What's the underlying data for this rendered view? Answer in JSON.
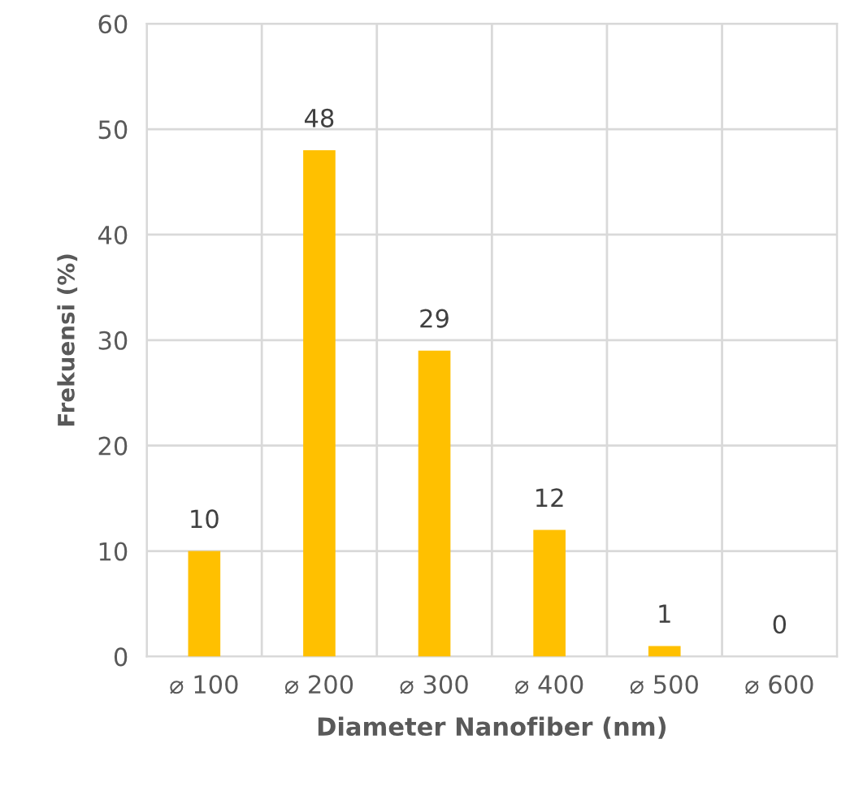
{
  "chart_data": {
    "type": "bar",
    "xlabel": "Diameter Nanofiber (nm)",
    "ylabel": "Frekuensi (%)",
    "categories": [
      "⌀ 100",
      "⌀ 200",
      "⌀ 300",
      "⌀ 400",
      "⌀ 500",
      "⌀ 600"
    ],
    "values": [
      10,
      48,
      29,
      12,
      1,
      0
    ],
    "color": "#ffc000",
    "data_labels": true,
    "grid": true,
    "ylim": [
      0,
      60
    ],
    "yticks": [
      0,
      10,
      20,
      30,
      40,
      50,
      60
    ]
  }
}
